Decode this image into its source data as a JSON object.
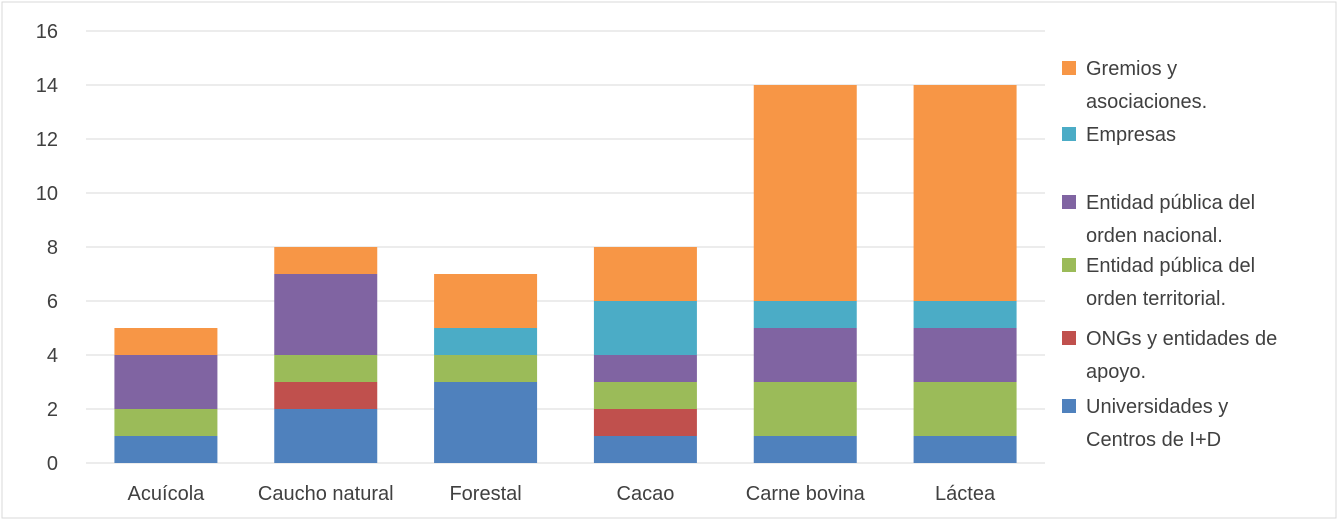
{
  "chart_data": {
    "type": "bar",
    "stacked": true,
    "title": "",
    "xlabel": "",
    "ylabel": "",
    "ylim": [
      0,
      16
    ],
    "yticks": [
      0,
      2,
      4,
      6,
      8,
      10,
      12,
      14,
      16
    ],
    "grid": true,
    "legend_position": "right",
    "categories": [
      "Acuícola",
      "Caucho natural",
      "Forestal",
      "Cacao",
      "Carne bovina",
      "Láctea"
    ],
    "series": [
      {
        "name": "Universidades y Centros de I+D",
        "label_lines": [
          "Universidades y",
          "Centros de I+D"
        ],
        "color": "#4f81bd",
        "values": [
          1,
          2,
          3,
          1,
          1,
          1
        ]
      },
      {
        "name": "ONGs y entidades de apoyo.",
        "label_lines": [
          "ONGs y entidades de",
          "apoyo."
        ],
        "color": "#c0504d",
        "values": [
          0,
          1,
          0,
          1,
          0,
          0
        ]
      },
      {
        "name": "Entidad pública del orden territorial.",
        "label_lines": [
          "Entidad pública del",
          "orden territorial."
        ],
        "color": "#9bbb59",
        "values": [
          1,
          1,
          1,
          1,
          2,
          2
        ]
      },
      {
        "name": "Entidad pública del orden nacional.",
        "label_lines": [
          "Entidad pública del",
          "orden nacional."
        ],
        "color": "#8064a2",
        "values": [
          2,
          3,
          0,
          1,
          2,
          2
        ]
      },
      {
        "name": "Empresas",
        "label_lines": [
          "Empresas"
        ],
        "color": "#4bacc6",
        "values": [
          0,
          0,
          1,
          2,
          1,
          1
        ]
      },
      {
        "name": "Gremios y asociaciones.",
        "label_lines": [
          "Gremios y",
          "asociaciones."
        ],
        "color": "#f79646",
        "values": [
          1,
          1,
          2,
          2,
          8,
          8
        ]
      }
    ]
  }
}
